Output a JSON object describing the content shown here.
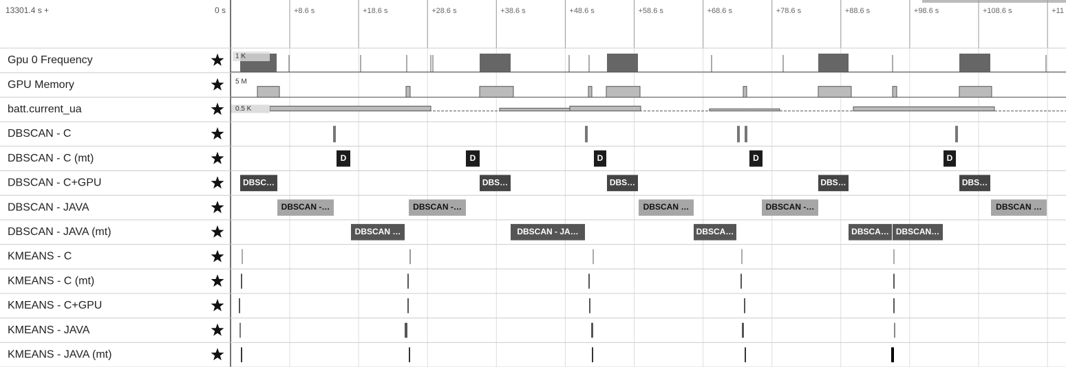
{
  "header": {
    "start": "13301.4 s +",
    "zero": "0 s",
    "ticks": [
      "+8.6 s",
      "+18.6 s",
      "+28.6 s",
      "+38.6 s",
      "+48.6 s",
      "+58.6 s",
      "+68.6 s",
      "+78.6 s",
      "+88.6 s",
      "+98.6 s",
      "+108.6 s",
      "+11"
    ]
  },
  "tracks": [
    {
      "name": "Gpu 0 Frequency",
      "scale": "1 K"
    },
    {
      "name": "GPU Memory",
      "scale": "5 M"
    },
    {
      "name": "batt.current_ua",
      "scale": "0.5 K"
    },
    {
      "name": "DBSCAN - C"
    },
    {
      "name": "DBSCAN - C (mt)",
      "slices": [
        "D",
        "D",
        "D",
        "D",
        "D"
      ]
    },
    {
      "name": "DBSCAN - C+GPU",
      "slices": [
        "DBSC…",
        "DBS…",
        "DBS…",
        "DBS…",
        "DBS…"
      ]
    },
    {
      "name": "DBSCAN - JAVA",
      "slices": [
        "DBSCAN -…",
        "DBSCAN -…",
        "DBSCAN …",
        "DBSCAN -…",
        "DBSCAN …"
      ]
    },
    {
      "name": "DBSCAN - JAVA (mt)",
      "slices": [
        "DBSCAN …",
        "DBSCAN - JA…",
        "DBSCA…",
        "DBSCA…",
        "DBSCAN…"
      ]
    },
    {
      "name": "KMEANS - C"
    },
    {
      "name": "KMEANS - C (mt)"
    },
    {
      "name": "KMEANS - C+GPU"
    },
    {
      "name": "KMEANS - JAVA"
    },
    {
      "name": "KMEANS - JAVA (mt)"
    }
  ]
}
